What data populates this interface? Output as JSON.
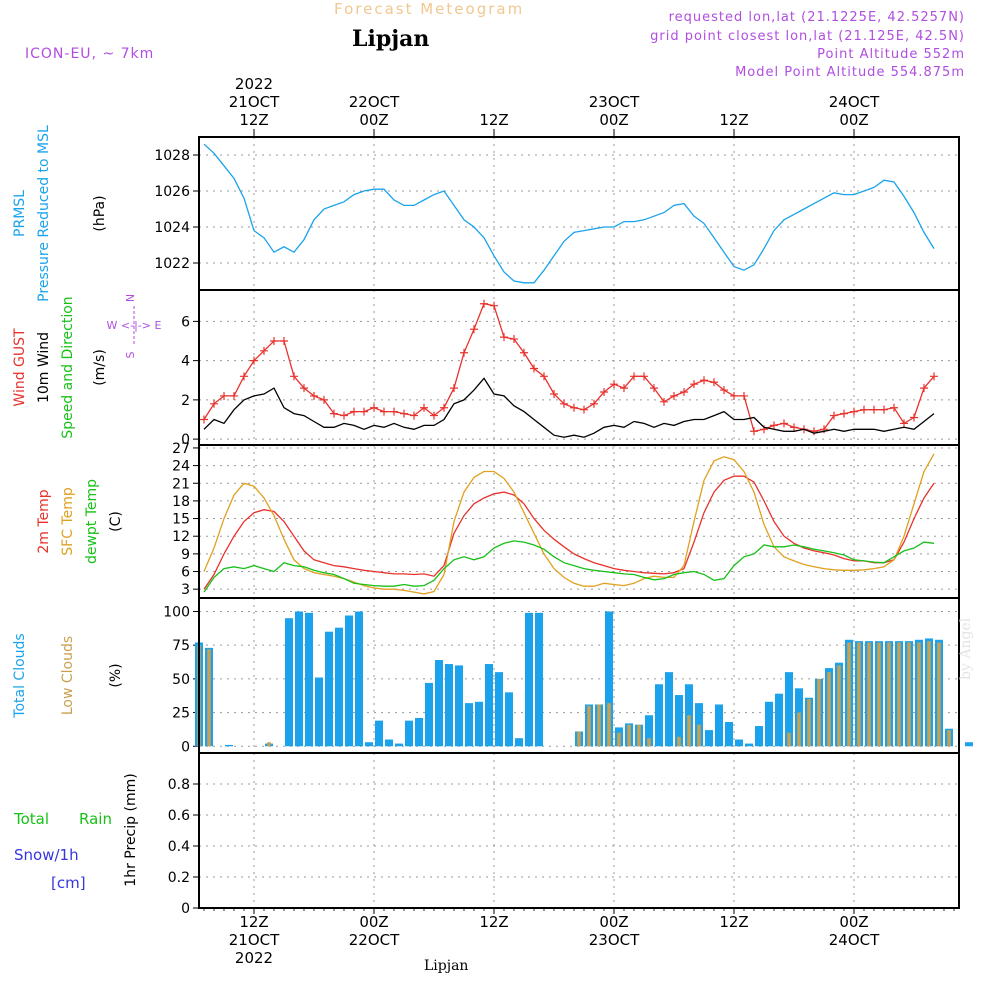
{
  "header": {
    "title_top": "Forecast Meteogram",
    "location": "Lipjan",
    "model": "ICON-EU, ~ 7km",
    "requested": "requested lon,lat (21.1225E, 42.5257N)",
    "gridpoint": "grid point closest lon,lat (21.125E, 42.5N)",
    "point_altitude": "Point Altitude 552m",
    "model_altitude": "Model Point Altitude 554.875m",
    "footer_location": "Lipjan",
    "watermark": "by Angel"
  },
  "colors": {
    "pressure": "#1aa3ec",
    "gust": "#e8322d",
    "wind": "#000000",
    "temp2m": "#e8322d",
    "sfctemp": "#e0a020",
    "dewpt": "#18c018",
    "total_clouds": "#1aa3ec",
    "low_clouds": "#c8a050",
    "header_purple": "#b04ee0",
    "header_orange": "#f0c890",
    "rain": "#18c018",
    "snow": "#3535e0"
  },
  "time_axis": {
    "top_ticks": [
      {
        "h": 12,
        "lines": [
          "2022",
          "21OCT",
          "12Z"
        ]
      },
      {
        "h": 24,
        "lines": [
          "22OCT",
          "00Z"
        ]
      },
      {
        "h": 36,
        "lines": [
          "12Z"
        ]
      },
      {
        "h": 48,
        "lines": [
          "23OCT",
          "00Z"
        ]
      },
      {
        "h": 60,
        "lines": [
          "12Z"
        ]
      },
      {
        "h": 72,
        "lines": [
          "24OCT",
          "00Z"
        ]
      }
    ],
    "bottom_ticks": [
      {
        "h": 12,
        "lines": [
          "12Z",
          "21OCT",
          "2022"
        ]
      },
      {
        "h": 24,
        "lines": [
          "00Z",
          "22OCT"
        ]
      },
      {
        "h": 36,
        "lines": [
          "12Z"
        ]
      },
      {
        "h": 48,
        "lines": [
          "00Z",
          "23OCT"
        ]
      },
      {
        "h": 60,
        "lines": [
          "12Z"
        ]
      },
      {
        "h": 72,
        "lines": [
          "00Z",
          "24OCT"
        ]
      }
    ]
  },
  "chart_data": [
    {
      "type": "line",
      "panel": "pressure",
      "axis_labels": [
        {
          "text": "PRMSL",
          "color": "#1aa3ec"
        },
        {
          "text": "Pressure Reduced to MSL",
          "color": "#1aa3ec"
        },
        {
          "text": "(hPa)",
          "color": "#000000"
        }
      ],
      "ylim": [
        1020.5,
        1029
      ],
      "yticks": [
        1022,
        1024,
        1026,
        1028
      ],
      "x_start": 7,
      "x_step": 1,
      "series": [
        {
          "color": "#1aa3ec",
          "values": [
            1028.6,
            1028.1,
            1027.4,
            1026.7,
            1025.6,
            1023.8,
            1023.4,
            1022.6,
            1022.9,
            1022.6,
            1023.3,
            1024.4,
            1025.0,
            1025.2,
            1025.4,
            1025.8,
            1026.0,
            1026.1,
            1026.1,
            1025.5,
            1025.2,
            1025.2,
            1025.5,
            1025.8,
            1026.0,
            1025.2,
            1024.4,
            1024.0,
            1023.4,
            1022.4,
            1021.5,
            1021.0,
            1020.9,
            1020.9,
            1021.6,
            1022.4,
            1023.2,
            1023.7,
            1023.8,
            1023.9,
            1024.0,
            1024.0,
            1024.3,
            1024.3,
            1024.4,
            1024.6,
            1024.8,
            1025.2,
            1025.3,
            1024.6,
            1024.2,
            1023.4,
            1022.6,
            1021.8,
            1021.6,
            1021.9,
            1022.8,
            1023.8,
            1024.4,
            1024.7,
            1025.0,
            1025.3,
            1025.6,
            1025.9,
            1025.8,
            1025.8,
            1026.0,
            1026.2,
            1026.6,
            1026.5,
            1025.7,
            1024.8,
            1023.7,
            1022.8
          ]
        }
      ]
    },
    {
      "type": "line",
      "panel": "wind",
      "axis_labels": [
        {
          "text": "Wind GUST",
          "color": "#e8322d"
        },
        {
          "text": "10m Wind",
          "color": "#000000"
        },
        {
          "text": "Speed and Direction",
          "color": "#18c018"
        },
        {
          "text": "(m/s)",
          "color": "#000000"
        }
      ],
      "compass_label": "W <-|-> E",
      "compass_n": "N",
      "compass_s": "S",
      "ylim": [
        -0.3,
        7.6
      ],
      "yticks": [
        0,
        2,
        4,
        6
      ],
      "x_start": 7,
      "x_step": 1,
      "series": [
        {
          "name": "Wind GUST",
          "color": "#e8322d",
          "values": [
            1.0,
            1.8,
            2.2,
            2.2,
            3.2,
            4.0,
            4.5,
            5.0,
            5.0,
            3.2,
            2.6,
            2.2,
            2.0,
            1.3,
            1.2,
            1.4,
            1.4,
            1.6,
            1.4,
            1.4,
            1.3,
            1.2,
            1.6,
            1.2,
            1.6,
            2.6,
            4.4,
            5.6,
            6.9,
            6.8,
            5.2,
            5.1,
            4.4,
            3.6,
            3.2,
            2.3,
            1.8,
            1.6,
            1.5,
            1.8,
            2.4,
            2.8,
            2.6,
            3.2,
            3.2,
            2.6,
            1.9,
            2.2,
            2.4,
            2.8,
            3.0,
            2.9,
            2.5,
            2.2,
            2.2,
            0.4,
            0.5,
            0.7,
            0.8,
            0.6,
            0.5,
            0.4,
            0.5,
            1.2,
            1.3,
            1.4,
            1.5,
            1.5,
            1.5,
            1.6,
            0.8,
            1.1,
            2.6,
            3.2
          ]
        },
        {
          "name": "10m Wind",
          "color": "#000000",
          "values": [
            0.5,
            1.0,
            0.8,
            1.5,
            2.0,
            2.2,
            2.3,
            2.6,
            1.6,
            1.3,
            1.2,
            0.9,
            0.6,
            0.6,
            0.8,
            0.7,
            0.5,
            0.7,
            0.6,
            0.8,
            0.6,
            0.5,
            0.7,
            0.7,
            1.0,
            1.8,
            2.0,
            2.5,
            3.1,
            2.3,
            2.2,
            1.7,
            1.4,
            1.0,
            0.6,
            0.2,
            0.1,
            0.2,
            0.1,
            0.3,
            0.6,
            0.7,
            0.6,
            0.9,
            0.8,
            0.6,
            0.8,
            0.7,
            0.9,
            1.0,
            1.0,
            1.2,
            1.4,
            1.0,
            1.0,
            1.1,
            0.6,
            0.5,
            0.4,
            0.4,
            0.5,
            0.3,
            0.4,
            0.5,
            0.4,
            0.5,
            0.5,
            0.5,
            0.4,
            0.5,
            0.6,
            0.5,
            0.9,
            1.3
          ]
        }
      ]
    },
    {
      "type": "line",
      "panel": "temperature",
      "axis_labels": [
        {
          "text": "2m Temp",
          "color": "#e8322d"
        },
        {
          "text": "SFC Temp",
          "color": "#e0a020"
        },
        {
          "text": "dewpt Temp",
          "color": "#18c018"
        },
        {
          "text": "(C)",
          "color": "#000000"
        }
      ],
      "ylim": [
        1.5,
        27.5
      ],
      "yticks": [
        3,
        6,
        9,
        12,
        15,
        18,
        21,
        24,
        27
      ],
      "x_start": 7,
      "x_step": 1,
      "series": [
        {
          "name": "2m Temp",
          "color": "#e8322d",
          "values": [
            3.0,
            5.5,
            9.0,
            12.0,
            14.5,
            16.0,
            16.5,
            16.2,
            14.5,
            12.0,
            9.5,
            8.0,
            7.5,
            7.0,
            6.8,
            6.5,
            6.2,
            6.0,
            5.8,
            5.6,
            5.6,
            5.5,
            5.6,
            5.2,
            7.0,
            12.5,
            15.5,
            17.5,
            18.5,
            19.2,
            19.5,
            19.0,
            17.5,
            15.0,
            13.0,
            11.5,
            10.2,
            9.0,
            8.2,
            7.5,
            7.0,
            6.5,
            6.2,
            6.0,
            5.8,
            5.7,
            5.6,
            5.8,
            6.5,
            11.0,
            16.0,
            19.5,
            21.5,
            22.2,
            22.2,
            21.2,
            18.0,
            14.5,
            12.0,
            10.8,
            10.0,
            9.5,
            9.2,
            8.8,
            8.2,
            7.8,
            7.8,
            7.5,
            7.5,
            8.0,
            11.0,
            15.0,
            18.5,
            21.0
          ]
        },
        {
          "name": "SFC Temp",
          "color": "#e0a020",
          "values": [
            6.0,
            10.0,
            15.0,
            19.0,
            21.0,
            20.5,
            18.5,
            15.5,
            11.5,
            8.0,
            6.5,
            5.8,
            5.5,
            5.2,
            4.8,
            4.2,
            3.6,
            3.2,
            3.0,
            3.0,
            2.8,
            2.5,
            2.2,
            2.6,
            5.5,
            14.5,
            19.5,
            22.0,
            23.0,
            23.0,
            21.8,
            19.5,
            16.0,
            12.5,
            9.0,
            6.5,
            5.0,
            4.0,
            3.5,
            3.5,
            4.0,
            3.8,
            3.6,
            4.0,
            4.8,
            5.2,
            5.0,
            5.0,
            7.0,
            14.5,
            21.5,
            24.8,
            25.5,
            25.0,
            23.0,
            19.5,
            14.0,
            10.2,
            8.5,
            7.8,
            7.2,
            6.8,
            6.5,
            6.3,
            6.2,
            6.2,
            6.3,
            6.5,
            6.8,
            8.0,
            12.0,
            17.5,
            23.0,
            26.0
          ]
        },
        {
          "name": "dewpt Temp",
          "color": "#18c018",
          "values": [
            2.5,
            5.0,
            6.5,
            6.8,
            6.5,
            7.0,
            6.5,
            6.0,
            7.5,
            7.0,
            6.8,
            6.2,
            5.8,
            5.5,
            4.8,
            4.0,
            3.8,
            3.6,
            3.5,
            3.5,
            3.8,
            3.5,
            3.6,
            4.5,
            6.5,
            8.0,
            8.5,
            8.0,
            8.5,
            10.0,
            10.8,
            11.2,
            11.0,
            10.5,
            9.8,
            8.5,
            7.5,
            7.0,
            6.5,
            6.2,
            6.0,
            5.8,
            5.6,
            5.5,
            5.0,
            4.6,
            4.8,
            5.5,
            5.8,
            6.0,
            5.5,
            4.5,
            4.8,
            7.0,
            8.5,
            9.0,
            10.5,
            10.2,
            10.2,
            10.5,
            10.2,
            9.8,
            9.5,
            9.2,
            8.8,
            8.0,
            7.8,
            7.6,
            7.5,
            8.5,
            9.5,
            10.0,
            11.0,
            10.8
          ]
        }
      ]
    },
    {
      "type": "bar",
      "panel": "clouds",
      "axis_labels": [
        {
          "text": "Total Clouds",
          "color": "#1aa3ec"
        },
        {
          "text": "Low Clouds",
          "color": "#c8a050"
        },
        {
          "text": "(%)",
          "color": "#000000"
        }
      ],
      "ylim": [
        -5,
        110
      ],
      "yticks": [
        0,
        25,
        50,
        75,
        100
      ],
      "x_start": 6.5,
      "x_step": 1,
      "series": [
        {
          "name": "Total Clouds",
          "color": "#1aa3ec",
          "values": [
            77,
            73,
            0,
            1,
            0,
            0,
            0,
            2,
            0,
            95,
            100,
            99,
            51,
            85,
            88,
            97,
            100,
            3,
            19,
            5,
            2,
            19,
            21,
            47,
            64,
            61,
            60,
            32,
            33,
            61,
            55,
            40,
            6,
            99,
            99,
            0,
            0,
            0,
            11,
            31,
            31,
            100,
            14,
            17,
            16,
            23,
            46,
            55,
            38,
            46,
            32,
            12,
            31,
            18,
            5,
            2,
            15,
            33,
            39,
            55,
            43,
            36,
            50,
            58,
            62,
            79,
            78,
            78,
            78,
            78,
            78,
            78,
            79,
            80,
            79,
            13,
            0,
            3
          ]
        },
        {
          "name": "Low Clouds",
          "color": "#c8a050",
          "values": [
            75,
            72,
            0,
            0,
            0,
            0,
            0,
            3,
            0,
            0,
            0,
            0,
            0,
            0,
            0,
            0,
            0,
            0,
            0,
            0,
            0,
            0,
            0,
            0,
            0,
            0,
            0,
            0,
            0,
            0,
            0,
            0,
            0,
            0,
            0,
            0,
            0,
            0,
            11,
            30,
            31,
            32,
            10,
            16,
            16,
            6,
            0,
            0,
            7,
            23,
            16,
            0,
            0,
            0,
            0,
            0,
            0,
            0,
            0,
            10,
            25,
            35,
            50,
            55,
            60,
            77,
            77,
            77,
            77,
            77,
            77,
            77,
            77,
            78,
            77,
            12,
            0,
            0
          ]
        }
      ]
    },
    {
      "type": "line",
      "panel": "precip",
      "axis_labels": [
        {
          "text": "Total",
          "color": "#18c018"
        },
        {
          "text": "Rain",
          "color": "#18c018"
        },
        {
          "text": "Snow/1h",
          "color": "#3535e0"
        },
        {
          "text": "[cm]",
          "color": "#3535e0"
        },
        {
          "text": "1hr Precip (mm)",
          "color": "#000000"
        }
      ],
      "ylim": [
        0,
        1.0
      ],
      "yticks": [
        0,
        0.2,
        0.4,
        0.6,
        0.8
      ],
      "series": []
    }
  ]
}
